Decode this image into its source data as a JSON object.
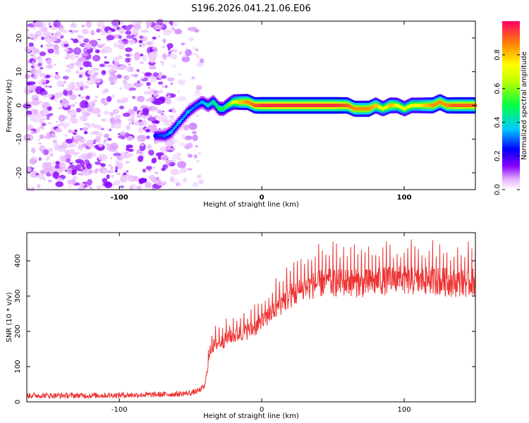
{
  "title": "S196.2026.041.21.06.E06",
  "chart_data": [
    {
      "type": "heatmap",
      "title": "S196.2026.041.21.06.E06",
      "xlabel": "Height of straight line (km)",
      "ylabel": "Frequency (Hz)",
      "xlim": [
        -165,
        150
      ],
      "ylim": [
        -25,
        25
      ],
      "xticks": [
        -100,
        0,
        100
      ],
      "yticks": [
        -20,
        -10,
        0,
        10,
        20
      ],
      "colorbar": {
        "label": "Normalized spectral amplitude",
        "range": [
          0,
          1
        ],
        "ticks": [
          0.0,
          0.2,
          0.4,
          0.6,
          0.8
        ],
        "tick_labels": [
          "0.0",
          "0.2",
          "0.4",
          "0.6",
          "0.8"
        ]
      },
      "noise_region_x": [
        -165,
        -52
      ],
      "track": {
        "x": [
          -75,
          -68,
          -64,
          -58,
          -52,
          -46,
          -42,
          -38,
          -34,
          -30,
          -27,
          -24,
          -20,
          -15,
          -10,
          -5,
          0,
          10,
          30,
          50,
          60,
          65,
          70,
          75,
          80,
          85,
          90,
          95,
          100,
          105,
          110,
          115,
          120,
          125,
          130,
          135,
          140,
          145,
          150
        ],
        "y": [
          -9,
          -9,
          -8,
          -5,
          -2,
          0,
          1,
          0,
          1,
          -1,
          -1,
          0,
          1,
          1,
          1,
          0,
          0,
          0,
          0,
          0,
          0,
          -1,
          -1,
          -1,
          0,
          -1,
          0,
          0,
          -1,
          0,
          0,
          0,
          0,
          1,
          0,
          0,
          0,
          0,
          0
        ],
        "amplitude": [
          0.25,
          0.3,
          0.35,
          0.35,
          0.35,
          0.3,
          0.35,
          0.4,
          0.45,
          0.5,
          0.5,
          0.55,
          0.7,
          0.8,
          0.85,
          0.9,
          0.95,
          0.95,
          0.95,
          0.95,
          0.9,
          0.85,
          0.85,
          0.85,
          0.8,
          0.7,
          0.8,
          0.75,
          0.7,
          0.75,
          0.75,
          0.8,
          0.85,
          0.85,
          0.85,
          0.9,
          0.9,
          0.9,
          0.9
        ]
      }
    },
    {
      "type": "line",
      "title": "",
      "xlabel": "Height of straight line (km)",
      "ylabel": "SNR (10 * v/v)",
      "xlim": [
        -165,
        150
      ],
      "ylim": [
        0,
        480
      ],
      "xticks": [
        -100,
        0,
        100
      ],
      "yticks": [
        0,
        100,
        200,
        300,
        400
      ],
      "color": "#ee3333",
      "series": [
        {
          "name": "SNR",
          "x": [
            -165,
            -120,
            -80,
            -60,
            -50,
            -44,
            -40,
            -38,
            -36,
            -32,
            -28,
            -24,
            -20,
            -15,
            -10,
            -5,
            0,
            5,
            10,
            15,
            20,
            25,
            30,
            35,
            40,
            50,
            60,
            70,
            80,
            90,
            100,
            110,
            120,
            130,
            140,
            150
          ],
          "values": [
            18,
            18,
            20,
            22,
            25,
            32,
            45,
            100,
            150,
            165,
            170,
            180,
            185,
            195,
            200,
            210,
            225,
            245,
            265,
            285,
            300,
            310,
            320,
            330,
            335,
            338,
            340,
            335,
            340,
            345,
            345,
            340,
            345,
            340,
            335,
            340
          ]
        }
      ]
    }
  ]
}
